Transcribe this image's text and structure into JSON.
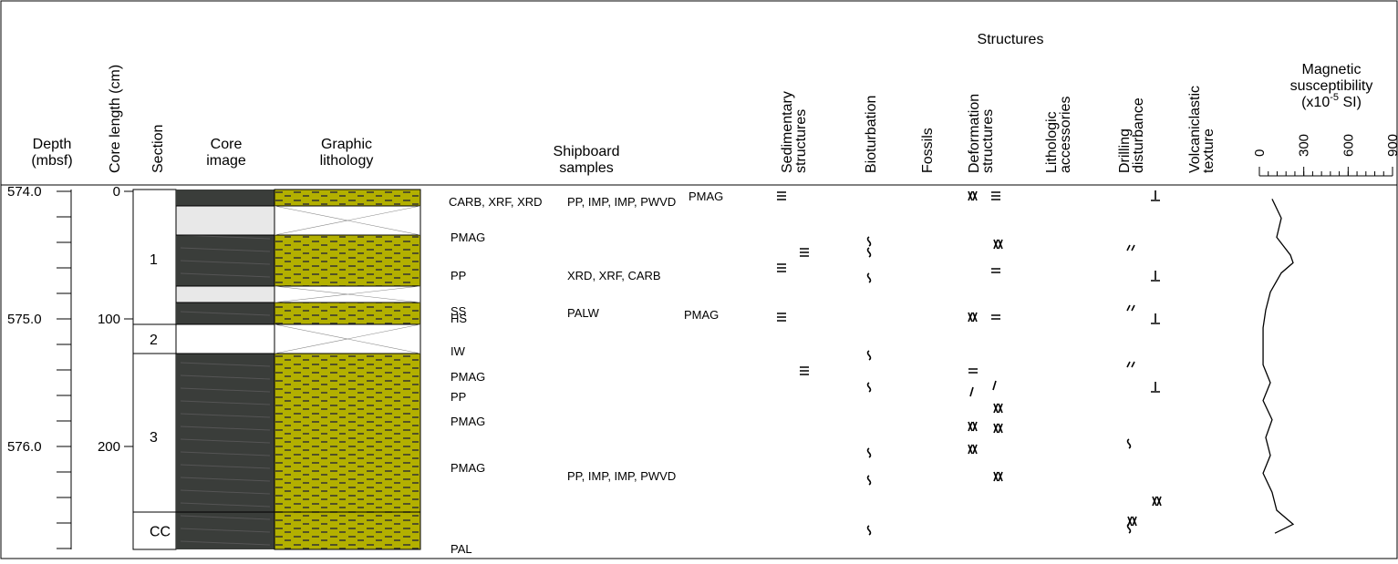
{
  "header": {
    "structures_title": "Structures",
    "depth": [
      "Depth",
      "(mbsf)"
    ],
    "core_length": "Core length (cm)",
    "section": "Section",
    "core_image": [
      "Core",
      "image"
    ],
    "graphic_lithology": [
      "Graphic",
      "lithology"
    ],
    "shipboard_samples": [
      "Shipboard",
      "samples"
    ],
    "rotated_columns": [
      [
        "Sedimentary",
        "structures"
      ],
      [
        "Bioturbation"
      ],
      [
        "Fossils"
      ],
      [
        "Deformation",
        "structures"
      ],
      [
        "Lithologic",
        "accessories"
      ],
      [
        "Drilling",
        "disturbance"
      ],
      [
        "Volcaniclastic",
        "texture"
      ]
    ],
    "magnetic": [
      "Magnetic",
      "susceptibility"
    ],
    "magnetic_unit": {
      "prefix": "(x10",
      "exponent": "-5",
      "suffix": " SI)"
    }
  },
  "depth_labels": [
    "574.0",
    "575.0",
    "576.0"
  ],
  "core_length_ticks": [
    0,
    100,
    200
  ],
  "sections": [
    "1",
    "2",
    "3",
    "CC"
  ],
  "samples": [
    "CARB, XRF, XRD",
    "PP, IMP, IMP, PWVD",
    "PMAG",
    "PMAG",
    "PP",
    "XRD, XRF, CARB",
    "SS",
    "HS",
    "PALW",
    "PMAG",
    "IW",
    "PMAG",
    "PP",
    "PMAG",
    "PMAG",
    "PP, IMP, IMP, PWVD",
    "PAL"
  ],
  "magnetic_susceptibility": {
    "xlim": [
      0,
      900
    ],
    "xticks": [
      0,
      300,
      600,
      900
    ],
    "depth_cm": [
      6,
      21,
      36,
      50,
      56,
      64,
      79,
      93,
      107,
      121,
      136,
      150,
      164,
      179,
      193,
      207,
      221,
      236,
      250,
      261,
      268
    ],
    "values": [
      86,
      148,
      117,
      210,
      228,
      148,
      74,
      43,
      25,
      25,
      25,
      74,
      25,
      86,
      43,
      74,
      25,
      86,
      117,
      228,
      105
    ]
  }
}
